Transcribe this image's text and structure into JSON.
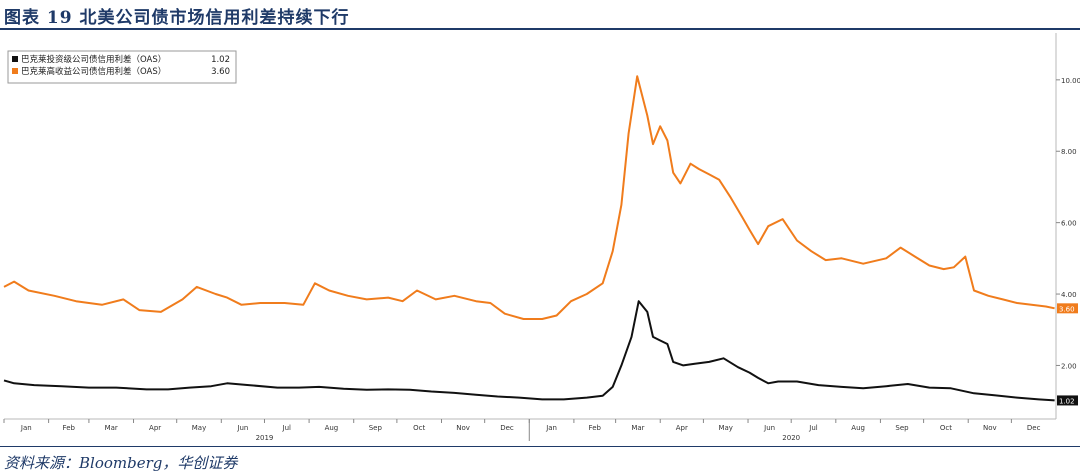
{
  "figure": {
    "title": "图表 19   北美公司债市场信用利差持续下行",
    "source": "资料来源：Bloomberg，华创证券"
  },
  "colors": {
    "title_blue": "#1f3a68",
    "ig_series": "#111111",
    "hy_series": "#f07c1c",
    "axis": "#b8b8b8"
  },
  "chart_data": {
    "type": "line",
    "title": "",
    "xlabel": "",
    "ylabel": "",
    "y_axis_side": "right",
    "ylim": [
      0.5,
      11.2
    ],
    "yticks": [
      2.0,
      4.0,
      6.0,
      8.0,
      10.0
    ],
    "ytick_labels": [
      "2.00",
      "4.00",
      "6.00",
      "8.00",
      "10.00"
    ],
    "x_range": [
      "2019-01-01",
      "2020-12-31"
    ],
    "month_labels": [
      "Jan",
      "Feb",
      "Mar",
      "Apr",
      "May",
      "Jun",
      "Jul",
      "Aug",
      "Sep",
      "Oct",
      "Nov",
      "Dec",
      "Jan",
      "Feb",
      "Mar",
      "Apr",
      "May",
      "Jun",
      "Jul",
      "Aug",
      "Sep",
      "Oct",
      "Nov",
      "Dec"
    ],
    "year_labels": [
      {
        "label": "2019",
        "x": "2019-07-01"
      },
      {
        "label": "2020",
        "x": "2020-07-01"
      }
    ],
    "legend": {
      "position": "top-left"
    },
    "series": [
      {
        "name": "巴克莱投资级公司债信用利差（OAS）",
        "last_value": "1.02",
        "color": "#111111",
        "x": [
          "2019-01-01",
          "2019-01-08",
          "2019-01-22",
          "2019-02-10",
          "2019-03-01",
          "2019-03-20",
          "2019-04-10",
          "2019-04-25",
          "2019-05-10",
          "2019-05-25",
          "2019-06-05",
          "2019-06-20",
          "2019-07-10",
          "2019-07-25",
          "2019-08-08",
          "2019-08-25",
          "2019-09-10",
          "2019-09-25",
          "2019-10-10",
          "2019-10-25",
          "2019-11-10",
          "2019-11-25",
          "2019-12-10",
          "2019-12-25",
          "2020-01-10",
          "2020-01-25",
          "2020-02-10",
          "2020-02-21",
          "2020-02-28",
          "2020-03-05",
          "2020-03-12",
          "2020-03-17",
          "2020-03-23",
          "2020-03-27",
          "2020-04-01",
          "2020-04-06",
          "2020-04-10",
          "2020-04-17",
          "2020-04-25",
          "2020-05-05",
          "2020-05-15",
          "2020-05-25",
          "2020-06-02",
          "2020-06-08",
          "2020-06-15",
          "2020-06-22",
          "2020-07-05",
          "2020-07-20",
          "2020-08-05",
          "2020-08-20",
          "2020-09-05",
          "2020-09-20",
          "2020-10-05",
          "2020-10-20",
          "2020-11-05",
          "2020-11-20",
          "2020-12-05",
          "2020-12-20",
          "2020-12-31"
        ],
        "y": [
          1.58,
          1.5,
          1.45,
          1.42,
          1.38,
          1.38,
          1.33,
          1.33,
          1.38,
          1.42,
          1.5,
          1.45,
          1.38,
          1.38,
          1.4,
          1.35,
          1.32,
          1.33,
          1.32,
          1.27,
          1.23,
          1.18,
          1.13,
          1.1,
          1.05,
          1.05,
          1.1,
          1.15,
          1.4,
          2.0,
          2.8,
          3.8,
          3.5,
          2.8,
          2.7,
          2.6,
          2.1,
          2.0,
          2.05,
          2.1,
          2.2,
          1.95,
          1.8,
          1.65,
          1.5,
          1.55,
          1.55,
          1.45,
          1.4,
          1.36,
          1.42,
          1.48,
          1.38,
          1.36,
          1.22,
          1.16,
          1.1,
          1.05,
          1.02
        ]
      },
      {
        "name": "巴克莱高收益公司债信用利差（OAS）",
        "last_value": "3.60",
        "color": "#f07c1c",
        "x": [
          "2019-01-01",
          "2019-01-08",
          "2019-01-18",
          "2019-02-05",
          "2019-02-20",
          "2019-03-10",
          "2019-03-25",
          "2019-04-05",
          "2019-04-20",
          "2019-05-05",
          "2019-05-15",
          "2019-05-28",
          "2019-06-05",
          "2019-06-15",
          "2019-06-28",
          "2019-07-15",
          "2019-07-28",
          "2019-08-05",
          "2019-08-15",
          "2019-08-28",
          "2019-09-10",
          "2019-09-25",
          "2019-10-05",
          "2019-10-15",
          "2019-10-28",
          "2019-11-10",
          "2019-11-25",
          "2019-12-05",
          "2019-12-15",
          "2019-12-28",
          "2020-01-10",
          "2020-01-20",
          "2020-01-30",
          "2020-02-10",
          "2020-02-21",
          "2020-02-28",
          "2020-03-05",
          "2020-03-10",
          "2020-03-16",
          "2020-03-23",
          "2020-03-27",
          "2020-04-01",
          "2020-04-06",
          "2020-04-10",
          "2020-04-15",
          "2020-04-22",
          "2020-04-28",
          "2020-05-05",
          "2020-05-12",
          "2020-05-20",
          "2020-05-28",
          "2020-06-02",
          "2020-06-08",
          "2020-06-15",
          "2020-06-25",
          "2020-07-05",
          "2020-07-15",
          "2020-07-25",
          "2020-08-05",
          "2020-08-20",
          "2020-09-05",
          "2020-09-15",
          "2020-09-25",
          "2020-10-05",
          "2020-10-15",
          "2020-10-22",
          "2020-10-30",
          "2020-11-05",
          "2020-11-15",
          "2020-11-25",
          "2020-12-05",
          "2020-12-15",
          "2020-12-25",
          "2020-12-31"
        ],
        "y": [
          4.2,
          4.35,
          4.1,
          3.95,
          3.8,
          3.7,
          3.85,
          3.55,
          3.5,
          3.85,
          4.2,
          4.0,
          3.9,
          3.7,
          3.75,
          3.75,
          3.7,
          4.3,
          4.1,
          3.95,
          3.85,
          3.9,
          3.8,
          4.1,
          3.85,
          3.95,
          3.8,
          3.75,
          3.45,
          3.3,
          3.3,
          3.4,
          3.8,
          4.0,
          4.3,
          5.2,
          6.5,
          8.5,
          10.1,
          9.0,
          8.2,
          8.7,
          8.3,
          7.4,
          7.1,
          7.65,
          7.5,
          7.35,
          7.2,
          6.7,
          6.15,
          5.8,
          5.4,
          5.9,
          6.1,
          5.5,
          5.2,
          4.95,
          5.0,
          4.85,
          5.0,
          5.3,
          5.05,
          4.8,
          4.7,
          4.75,
          5.05,
          4.1,
          3.95,
          3.85,
          3.75,
          3.7,
          3.65,
          3.6
        ]
      }
    ]
  }
}
